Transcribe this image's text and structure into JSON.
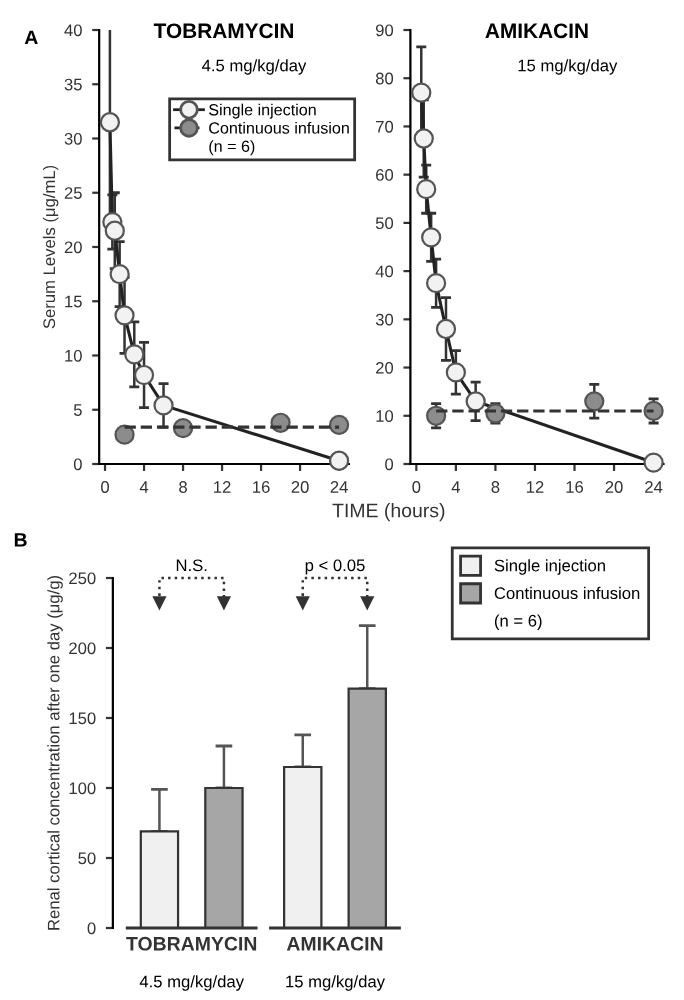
{
  "chart_data": [
    {
      "type": "line",
      "title": "TOBRAMYCIN",
      "subtitle": "4.5 mg/kg/day",
      "ylabel": "Serum Levels (μg/mL)",
      "xlabel": "TIME (hours)",
      "xlim": [
        -0.6,
        25
      ],
      "xticks": [
        0,
        4,
        8,
        12,
        16,
        20,
        24
      ],
      "ylim": [
        0,
        40
      ],
      "yticks": [
        0,
        5,
        10,
        15,
        20,
        25,
        30,
        35,
        40
      ],
      "legend": "top right",
      "marker": "circle",
      "annotations": [
        "A",
        "(n = 6)"
      ],
      "series": [
        {
          "name": "Single injection",
          "type": "line",
          "line_style": "solid",
          "color": "#f2f2f2",
          "x": [
            0.5,
            0.75,
            1,
            1.5,
            2,
            3,
            4,
            6,
            24
          ],
          "values": [
            31.5,
            22.3,
            21.5,
            17.5,
            13.7,
            10.1,
            8.2,
            5.4,
            0.3
          ],
          "errors": [
            9.5,
            2.5,
            3.5,
            3,
            3.5,
            3,
            3,
            2,
            null
          ]
        },
        {
          "name": "Continuous infusion",
          "type": "scatter",
          "line_style": "dashed",
          "color": "#8c8c8c",
          "x": [
            2,
            8,
            18,
            24
          ],
          "values": [
            2.7,
            3.3,
            3.8,
            3.6
          ],
          "errors": [
            0.6,
            0.5,
            0.5,
            0.5
          ]
        },
        {
          "type": "line",
          "line_style": "dashed",
          "marker": "none",
          "color": "#333333",
          "x": [
            2,
            24
          ],
          "values": [
            3.4,
            3.4
          ]
        }
      ]
    },
    {
      "type": "line",
      "title": "AMIKACIN",
      "subtitle": "15 mg/kg/day",
      "xlim": [
        -0.6,
        25
      ],
      "xticks": [
        0,
        4,
        8,
        12,
        16,
        20,
        24
      ],
      "ylim": [
        0,
        90
      ],
      "yticks": [
        0,
        10,
        20,
        30,
        40,
        50,
        60,
        70,
        80,
        90
      ],
      "marker": "circle",
      "series": [
        {
          "type": "line",
          "line_style": "solid",
          "color": "#f2f2f2",
          "x": [
            0.5,
            0.75,
            1,
            1.5,
            2,
            3,
            4,
            6,
            24
          ],
          "values": [
            77,
            67.5,
            57,
            47,
            37.5,
            28,
            19,
            13,
            0.3
          ],
          "errors": [
            9.5,
            8,
            5,
            5,
            5,
            6.5,
            4.5,
            4,
            null
          ]
        },
        {
          "type": "scatter",
          "color": "#8c8c8c",
          "x": [
            2,
            8,
            18,
            24
          ],
          "values": [
            10,
            10.5,
            13,
            11
          ],
          "errors": [
            2.5,
            2,
            3.5,
            2.5
          ]
        },
        {
          "type": "line",
          "line_style": "dashed",
          "marker": "none",
          "color": "#333333",
          "x": [
            2,
            24
          ],
          "values": [
            11,
            11
          ]
        }
      ]
    },
    {
      "type": "bar",
      "ylabel": "Renal cortical concentration after one day (μg/g)",
      "categories": [
        "TOBRAMYCIN",
        "AMIKACIN"
      ],
      "ylim": [
        0,
        250
      ],
      "yticks": [
        0,
        50,
        100,
        150,
        200,
        250
      ],
      "legend": "top right",
      "annotations": [
        "B",
        "(n = 6)",
        "4.5 mg/kg/day",
        "15 mg/kg/day",
        "N.S.",
        "p < 0.05"
      ],
      "series": [
        {
          "name": "Single injection",
          "color": "#f0f0f0",
          "values": [
            69,
            115
          ],
          "errors": [
            30,
            23
          ]
        },
        {
          "name": "Continuous infusion",
          "color": "#a6a6a6",
          "values": [
            100,
            171
          ],
          "errors": [
            30,
            45
          ]
        }
      ]
    }
  ]
}
